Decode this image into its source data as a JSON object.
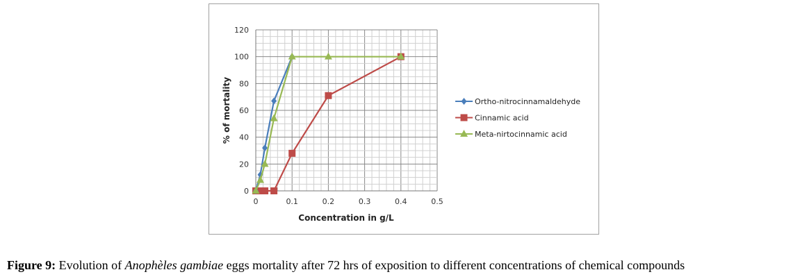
{
  "chart_data": {
    "type": "line",
    "title": "",
    "xlabel": "Concentration in g/L",
    "ylabel": "%  of mortality",
    "xlim": [
      0,
      0.5
    ],
    "ylim": [
      0,
      120
    ],
    "xticks": [
      "0",
      "0.1",
      "0.2",
      "0.3",
      "0.4",
      "0.5"
    ],
    "yticks": [
      "0",
      "20",
      "40",
      "60",
      "80",
      "100",
      "120"
    ],
    "grid": true,
    "legend_position": "right",
    "series": [
      {
        "name": "Ortho-nitrocinnamaldehyde",
        "color": "#4a7ebb",
        "marker": "diamond",
        "x": [
          0,
          0.0125,
          0.025,
          0.05,
          0.1
        ],
        "y": [
          0,
          12,
          32,
          67,
          100
        ]
      },
      {
        "name": "Cinnamic acid",
        "color": "#be4b48",
        "marker": "square",
        "x": [
          0,
          0.0125,
          0.025,
          0.05,
          0.1,
          0.2,
          0.4
        ],
        "y": [
          0,
          0,
          0,
          0,
          28,
          71,
          100
        ]
      },
      {
        "name": "Meta-nirtocinnamic acid",
        "color": "#98b954",
        "marker": "triangle",
        "x": [
          0,
          0.0125,
          0.025,
          0.05,
          0.1,
          0.2,
          0.4
        ],
        "y": [
          0,
          8,
          20,
          54,
          100,
          100,
          100
        ]
      }
    ]
  },
  "caption": {
    "label": "Figure 9:",
    "text_before": " Evolution of ",
    "species": "Anophèles gambiae",
    "text_after": " eggs mortality after 72 hrs of exposition to different concentrations of chemical compounds"
  }
}
